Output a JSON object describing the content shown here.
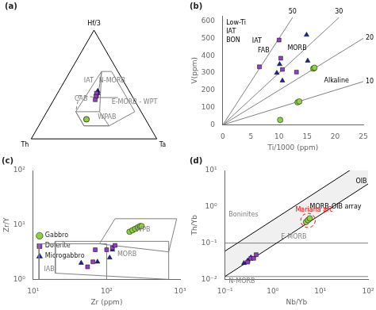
{
  "chart_data": [
    {
      "type": "ternary",
      "title": "(a)",
      "corner_labels": {
        "top": "Hf/3",
        "left": "Th",
        "right": "Ta"
      },
      "series": [
        {
          "color": "#90d040",
          "marker": "circle",
          "values": [
            [
              0.18,
              0.47,
              0.35
            ],
            [
              0.18,
              0.47,
              0.35
            ]
          ]
        },
        {
          "color": "#9040c0",
          "marker": "square",
          "values": [
            [
              0.4,
              0.28,
              0.32
            ],
            [
              0.42,
              0.27,
              0.31
            ],
            [
              0.39,
              0.29,
              0.32
            ],
            [
              0.36,
              0.31,
              0.33
            ]
          ]
        },
        {
          "color": "#2020a0",
          "marker": "triangle",
          "values": [
            [
              0.44,
              0.25,
              0.31
            ],
            [
              0.42,
              0.26,
              0.32
            ]
          ]
        }
      ],
      "boundaries": [
        {
          "color": "black",
          "line_style": "solid",
          "points": [
            [
              0,
              1,
              0
            ],
            [
              0,
              0,
              1
            ],
            [
              1,
              0,
              0
            ],
            [
              0,
              1,
              0
            ]
          ]
        },
        {
          "color": "gray",
          "line_style": "solid",
          "points": [
            [
              0.62,
              0.13,
              0.25
            ],
            [
              0.62,
              0.05,
              0.33
            ],
            [
              0.25,
              0.05,
              0.7
            ],
            [
              0.12,
              0.32,
              0.56
            ],
            [
              0.12,
              0.52,
              0.36
            ],
            [
              0.25,
              0.52,
              0.23
            ],
            [
              0.62,
              0.13,
              0.25
            ]
          ]
        },
        {
          "color": "gray",
          "line_style": "solid",
          "points": [
            [
              0.38,
              0.28,
              0.34
            ],
            [
              0.38,
              0.12,
              0.5
            ]
          ]
        },
        {
          "color": "gray",
          "line_style": "solid",
          "points": [
            [
              0.62,
              0.13,
              0.25
            ],
            [
              0.38,
              0.28,
              0.34
            ]
          ]
        },
        {
          "color": "gray",
          "line_style": "solid",
          "points": [
            [
              0.12,
              0.32,
              0.56
            ],
            [
              0.12,
              0.52,
              0.36
            ],
            [
              0.25,
              0.52,
              0.23
            ],
            [
              0.25,
              0.33,
              0.42
            ],
            [
              0.12,
              0.32,
              0.56
            ]
          ]
        },
        {
          "color": "gray",
          "line_style": "solid",
          "points": [
            [
              0.62,
              0.13,
              0.25
            ],
            [
              0.25,
              0.33,
              0.42
            ]
          ]
        },
        {
          "color": "gray",
          "line_style": "dashed",
          "points": [
            [
              0.4,
              0.42,
              0.18
            ],
            [
              0.25,
              0.52,
              0.23
            ]
          ]
        },
        {
          "color": "gray",
          "line_style": "dashed",
          "points": [
            [
              0.4,
              0.42,
              0.18
            ],
            [
              0.38,
              0.28,
              0.34
            ]
          ]
        }
      ],
      "annotations": [
        {
          "text": "N-MORB",
          "at": [
            0.52,
            0.2,
            0.28
          ],
          "color": "gray"
        },
        {
          "text": "IAT",
          "at": [
            0.52,
            0.32,
            0.16
          ],
          "color": "gray"
        },
        {
          "text": "E-MORB - WPT",
          "at": [
            0.32,
            0.2,
            0.48
          ],
          "color": "gray"
        },
        {
          "text": "CAB",
          "at": [
            0.35,
            0.48,
            0.17
          ],
          "color": "gray"
        },
        {
          "text": "WPAB",
          "at": [
            0.18,
            0.38,
            0.44
          ],
          "color": "gray"
        }
      ]
    },
    {
      "type": "scatter",
      "title": "(b)",
      "x_label": "Ti/1000 (ppm)",
      "y_label": "V(ppm)",
      "xlim": [
        0,
        25
      ],
      "ylim": [
        0,
        630
      ],
      "xticks": [
        0,
        5,
        10,
        15,
        20,
        25
      ],
      "yticks": [
        0,
        100,
        200,
        300,
        400,
        500,
        600
      ],
      "grid": false,
      "series": [
        {
          "color": "#90d040",
          "marker": "circle",
          "x": [
            10.2,
            13.3,
            13.6,
            16.1,
            16.3
          ],
          "values": [
            28,
            130,
            135,
            325,
            330
          ]
        },
        {
          "color": "#9040c0",
          "marker": "square",
          "x": [
            6.5,
            10.0,
            10.3,
            10.6,
            13.1,
            16.1
          ],
          "values": [
            335,
            490,
            385,
            320,
            305,
            325
          ]
        },
        {
          "color": "#2020a0",
          "marker": "triangle",
          "x": [
            9.6,
            10.1,
            10.6,
            14.9,
            15.1
          ],
          "values": [
            300,
            350,
            255,
            520,
            370
          ]
        }
      ],
      "reference_lines": [
        {
          "label": "10",
          "color": "gray",
          "line_style": "solid",
          "points": [
            [
              0,
              0
            ],
            [
              25,
              250
            ]
          ]
        },
        {
          "label": "20",
          "color": "gray",
          "line_style": "solid",
          "points": [
            [
              0,
              0
            ],
            [
              25,
              500
            ]
          ]
        },
        {
          "label": "30",
          "color": "gray",
          "line_style": "solid",
          "points": [
            [
              0,
              0
            ],
            [
              20.666666666666668,
              620
            ]
          ]
        },
        {
          "label": "50",
          "color": "gray",
          "line_style": "solid",
          "points": [
            [
              0,
              0
            ],
            [
              12.4,
              620
            ]
          ]
        }
      ],
      "annotations": [
        {
          "text": "Low-Ti",
          "x": 0.6,
          "y": 580,
          "color": "black"
        },
        {
          "text": "IAT",
          "x": 0.6,
          "y": 530,
          "color": "black"
        },
        {
          "text": "BON",
          "x": 0.6,
          "y": 480,
          "color": "black"
        },
        {
          "text": "IAT",
          "x": 5.2,
          "y": 475,
          "color": "black"
        },
        {
          "text": "FAB",
          "x": 6.2,
          "y": 420,
          "color": "black"
        },
        {
          "text": "MORB",
          "x": 11.5,
          "y": 435,
          "color": "black"
        },
        {
          "text": "Alkaline",
          "x": 18.0,
          "y": 245,
          "color": "black"
        }
      ]
    },
    {
      "type": "scatter",
      "title": "(c)",
      "x_label": "Zr (ppm)",
      "y_label": "Zr/Y",
      "log": true,
      "xlim": [
        10,
        1000
      ],
      "ylim": [
        1,
        100
      ],
      "xticks": [
        {
          "value": 10,
          "label": "10¹"
        },
        {
          "value": 100,
          "label": "10²"
        },
        {
          "value": 1000,
          "label": "10³"
        }
      ],
      "yticks": [
        {
          "value": 1,
          "label": "10⁰"
        },
        {
          "value": 10,
          "label": "10¹"
        },
        {
          "value": 100,
          "label": "10²"
        }
      ],
      "grid": false,
      "legend": "upper right",
      "series": [
        {
          "name": "Gabbro",
          "color": "#90d040",
          "marker": "circle",
          "x": [
            205,
            225,
            245,
            265,
            285,
            300
          ],
          "values": [
            7.5,
            8.0,
            8.5,
            9.0,
            9.5,
            9.5
          ]
        },
        {
          "name": "Dolerite",
          "color": "#9040c0",
          "marker": "square",
          "x": [
            55,
            70,
            100,
            120,
            130,
            65
          ],
          "values": [
            1.7,
            3.5,
            3.5,
            3.8,
            4.2,
            2.1
          ]
        },
        {
          "name": "Microgabbro",
          "color": "#2020a0",
          "marker": "triangle",
          "x": [
            45,
            75,
            110,
            120
          ],
          "values": [
            2.0,
            2.1,
            2.5,
            3.5
          ]
        }
      ],
      "boundaries": [
        {
          "color": "gray",
          "line_style": "solid",
          "points": [
            [
              80,
              4.5
            ],
            [
              700,
              3.2
            ],
            [
              900,
              13
            ],
            [
              130,
              13
            ],
            [
              80,
              4.5
            ]
          ]
        },
        {
          "color": "gray",
          "line_style": "solid",
          "points": [
            [
              20,
              1.3
            ],
            [
              700,
              1.0
            ],
            [
              700,
              5.0
            ],
            [
              20,
              5.0
            ],
            [
              20,
              1.3
            ]
          ]
        },
        {
          "color": "gray",
          "line_style": "solid",
          "points": [
            [
              12,
              1.0
            ],
            [
              100,
              1.0
            ],
            [
              100,
              4.5
            ],
            [
              12,
              4.5
            ],
            [
              12,
              1.0
            ]
          ]
        }
      ],
      "annotations": [
        {
          "text": "WPB",
          "x": 250,
          "y": 7.5,
          "color": "gray"
        },
        {
          "text": "MORB",
          "x": 140,
          "y": 2.7,
          "color": "gray"
        },
        {
          "text": "IAB",
          "x": 14,
          "y": 1.4,
          "color": "gray"
        }
      ]
    },
    {
      "type": "scatter",
      "title": "(d)",
      "x_label": "Nb/Yb",
      "y_label": "Th/Yb",
      "log": true,
      "xlim": [
        0.1,
        100
      ],
      "ylim": [
        0.01,
        10
      ],
      "xticks": [
        {
          "value": 0.1,
          "label": "10⁻¹"
        },
        {
          "value": 1,
          "label": "10⁰"
        },
        {
          "value": 10,
          "label": "10¹"
        },
        {
          "value": 100,
          "label": "10²"
        }
      ],
      "yticks": [
        {
          "value": 0.01,
          "label": "10⁻²"
        },
        {
          "value": 0.1,
          "label": "10⁻¹"
        },
        {
          "value": 1,
          "label": "10⁰"
        },
        {
          "value": 10,
          "label": "10¹"
        }
      ],
      "grid": false,
      "series": [
        {
          "color": "#90d040",
          "marker": "circle",
          "x": [
            5.0,
            5.5,
            6.0
          ],
          "values": [
            0.38,
            0.43,
            0.48
          ]
        },
        {
          "color": "#9040c0",
          "marker": "square",
          "x": [
            0.3,
            0.35,
            0.4,
            0.45
          ],
          "values": [
            0.03,
            0.038,
            0.038,
            0.048
          ]
        },
        {
          "color": "#2020a0",
          "marker": "triangle",
          "x": [
            0.25,
            0.3,
            0.35
          ],
          "values": [
            0.028,
            0.033,
            0.04
          ]
        }
      ],
      "band": {
        "color": "black",
        "lower": [
          [
            0.1,
            0.012
          ],
          [
            100,
            4.257761
          ]
        ],
        "upper": [
          [
            0.1,
            0.06
          ],
          [
            100,
            21.288806
          ]
        ]
      },
      "horizontal_lines": [
        {
          "y": 0.1,
          "color": "gray",
          "line_style": "solid"
        },
        {
          "y": 0.012,
          "color": "gray",
          "line_style": "solid"
        }
      ],
      "ellipses": [
        {
          "x": [
            3.875785,
            7.804871
          ],
          "y": [
            0.267804,
            0.658691
          ],
          "color": "red",
          "line_style": "dashed"
        }
      ],
      "annotations": [
        {
          "text": "MORB-OIB array",
          "x": 6,
          "y": 0.9,
          "color": "black"
        },
        {
          "text": "OIB",
          "x": 55,
          "y": 4.5,
          "color": "black"
        },
        {
          "text": "E-MORB",
          "x": 1.5,
          "y": 0.13,
          "color": "gray"
        },
        {
          "text": "N-MORB",
          "x": 0.12,
          "y": 0.008,
          "color": "gray"
        },
        {
          "text": "Boninites",
          "x": 0.12,
          "y": 0.55,
          "color": "gray"
        },
        {
          "text": "Mariana arc",
          "x": 3.0,
          "y": 0.75,
          "color": "red"
        }
      ]
    }
  ]
}
